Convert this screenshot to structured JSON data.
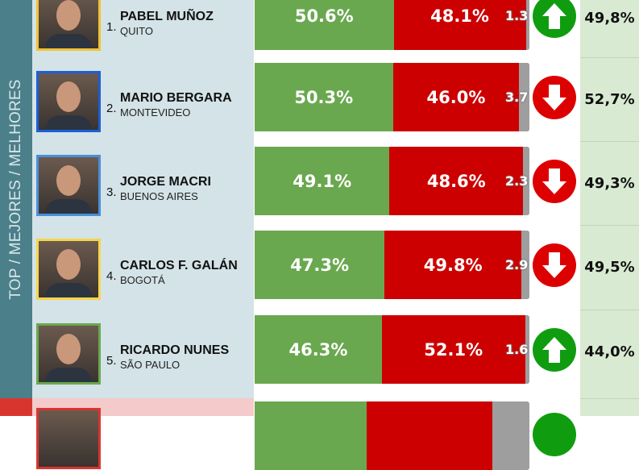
{
  "sidebar": {
    "label": "TOP / MEJORES / MELHORES"
  },
  "colors": {
    "approve": "#6aa84f",
    "disapprove": "#cc0000",
    "undecided": "#9e9e9e",
    "up": "#0f9d0f",
    "down": "#dd0000"
  },
  "rows": [
    {
      "rank": "1.",
      "name": "PABEL MUÑOZ",
      "city": "QUITO",
      "approve": "50.6%",
      "disapprove": "48.1%",
      "undecided": "1.3",
      "approve_value": 50.6,
      "disapprove_value": 48.1,
      "trend": "up",
      "trend_icon": "arrow-up-icon",
      "previous": "49,8%",
      "border": "#f1c232"
    },
    {
      "rank": "2.",
      "name": "MARIO BERGARA",
      "city": "MONTEVIDEO",
      "approve": "50.3%",
      "disapprove": "46.0%",
      "undecided": "3.7",
      "approve_value": 50.3,
      "disapprove_value": 46.0,
      "trend": "down",
      "trend_icon": "arrow-down-icon",
      "previous": "52,7%",
      "border": "#1c5fd6"
    },
    {
      "rank": "3.",
      "name": "JORGE MACRI",
      "city": "BUENOS AIRES",
      "approve": "49.1%",
      "disapprove": "48.6%",
      "undecided": "2.3",
      "approve_value": 49.1,
      "disapprove_value": 48.6,
      "trend": "down",
      "trend_icon": "arrow-down-icon",
      "previous": "49,3%",
      "border": "#4a8fd9"
    },
    {
      "rank": "4.",
      "name": "CARLOS F. GALÁN",
      "city": "BOGOTÁ",
      "approve": "47.3%",
      "disapprove": "49.8%",
      "undecided": "2.9",
      "approve_value": 47.3,
      "disapprove_value": 49.8,
      "trend": "down",
      "trend_icon": "arrow-down-icon",
      "previous": "49,5%",
      "border": "#f7d54a"
    },
    {
      "rank": "5.",
      "name": "RICARDO NUNES",
      "city": "SÃO PAULO",
      "approve": "46.3%",
      "disapprove": "52.1%",
      "undecided": "1.6",
      "approve_value": 46.3,
      "disapprove_value": 52.1,
      "trend": "up",
      "trend_icon": "arrow-up-icon",
      "previous": "44,0%",
      "border": "#6aa84f"
    }
  ]
}
